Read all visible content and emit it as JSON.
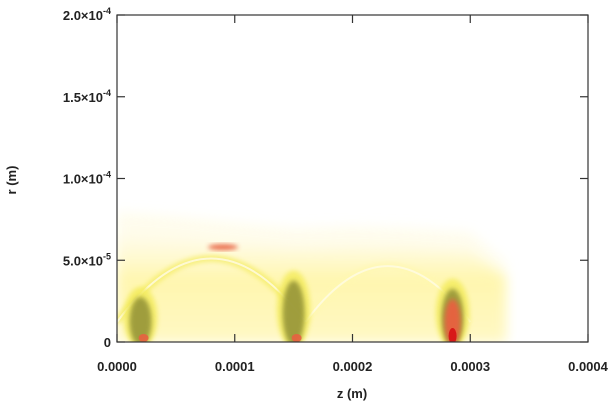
{
  "chart_data": {
    "type": "heatmap",
    "xlabel": "z (m)",
    "ylabel": "r (m)",
    "xlim": [
      0.0,
      0.0004
    ],
    "ylim": [
      0.0,
      0.0002
    ],
    "xticks": [
      {
        "value": 0.0,
        "label": "0.0000"
      },
      {
        "value": 0.0001,
        "label": "0.0001"
      },
      {
        "value": 0.0002,
        "label": "0.0002"
      },
      {
        "value": 0.0003,
        "label": "0.0003"
      },
      {
        "value": 0.0004,
        "label": "0.0004"
      }
    ],
    "yticks": [
      {
        "value": 0.0,
        "base": "0",
        "exp": ""
      },
      {
        "value": 5e-05,
        "base": "5.0×10",
        "exp": "-5"
      },
      {
        "value": 0.0001,
        "base": "1.0×10",
        "exp": "-4"
      },
      {
        "value": 0.00015,
        "base": "1.5×10",
        "exp": "-4"
      },
      {
        "value": 0.0002,
        "base": "2.0×10",
        "exp": "-4"
      }
    ],
    "grid": false,
    "colors": {
      "background": "#ffffff",
      "low": "#fffce8",
      "light": "#fff8b0",
      "mid": "#f4ec60",
      "greenish": "#8a8a30",
      "high": "#e86040",
      "peak": "#d81818"
    },
    "features": [
      {
        "kind": "envelope",
        "z": [
          0.0,
          5e-05,
          0.0001,
          0.00015,
          0.0002,
          0.00025,
          0.0003,
          0.00033
        ],
        "r": [
          6.5e-05,
          6.3e-05,
          6e-05,
          5.7e-05,
          5.8e-05,
          5.7e-05,
          5.5e-05,
          4e-05
        ]
      },
      {
        "kind": "arc",
        "z_start": 0.0,
        "z_end": 0.00016,
        "r_peak": 5.8e-05,
        "intensity": "mid"
      },
      {
        "kind": "arc",
        "z_start": 0.00016,
        "z_end": 0.0003,
        "r_peak": 5.2e-05,
        "intensity": "light"
      },
      {
        "kind": "column",
        "z": 2e-05,
        "r_top": 3e-05,
        "intensity": "greenish"
      },
      {
        "kind": "column",
        "z": 0.00015,
        "r_top": 4e-05,
        "intensity": "greenish"
      },
      {
        "kind": "column",
        "z": 0.000285,
        "r_top": 3.5e-05,
        "intensity": "peak"
      },
      {
        "kind": "spot",
        "z": 9e-05,
        "r": 5.8e-05,
        "intensity": "high"
      }
    ]
  }
}
